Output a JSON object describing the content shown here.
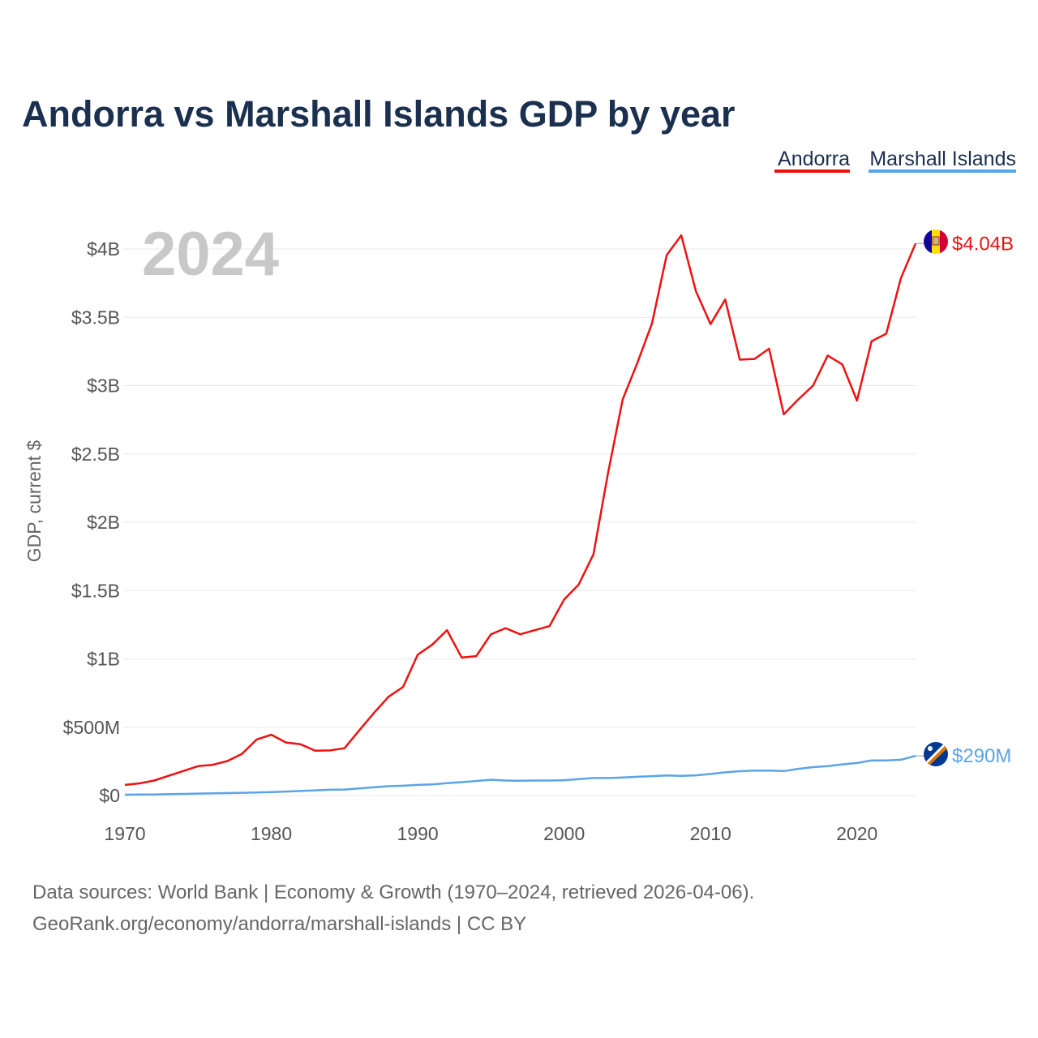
{
  "chart_data": {
    "type": "line",
    "title": "Andorra vs Marshall Islands GDP by year",
    "ylabel": "GDP, current $",
    "xlabel": "",
    "current_year": "2024",
    "ylim": [
      0,
      4200000000
    ],
    "xlim": [
      1970,
      2024
    ],
    "y_ticks": [
      {
        "value": 0,
        "label": "$0"
      },
      {
        "value": 500000000,
        "label": "$500M"
      },
      {
        "value": 1000000000,
        "label": "$1B"
      },
      {
        "value": 1500000000,
        "label": "$1.5B"
      },
      {
        "value": 2000000000,
        "label": "$2B"
      },
      {
        "value": 2500000000,
        "label": "$2.5B"
      },
      {
        "value": 3000000000,
        "label": "$3B"
      },
      {
        "value": 3500000000,
        "label": "$3.5B"
      },
      {
        "value": 4000000000,
        "label": "$4B"
      }
    ],
    "x_ticks": [
      {
        "value": 1970,
        "label": "1970"
      },
      {
        "value": 1980,
        "label": "1980"
      },
      {
        "value": 1990,
        "label": "1990"
      },
      {
        "value": 2000,
        "label": "2000"
      },
      {
        "value": 2010,
        "label": "2010"
      },
      {
        "value": 2020,
        "label": "2020"
      }
    ],
    "x": [
      1970,
      1971,
      1972,
      1973,
      1974,
      1975,
      1976,
      1977,
      1978,
      1979,
      1980,
      1981,
      1982,
      1983,
      1984,
      1985,
      1986,
      1987,
      1988,
      1989,
      1990,
      1991,
      1992,
      1993,
      1994,
      1995,
      1996,
      1997,
      1998,
      1999,
      2000,
      2001,
      2002,
      2003,
      2004,
      2005,
      2006,
      2007,
      2008,
      2009,
      2010,
      2011,
      2012,
      2013,
      2014,
      2015,
      2016,
      2017,
      2018,
      2019,
      2020,
      2021,
      2022,
      2023,
      2024
    ],
    "series": [
      {
        "name": "Andorra",
        "color": "#ee1111",
        "end_label": "$4.04B",
        "flag": "andorra",
        "values": [
          78000000,
          89000000,
          110000000,
          145000000,
          180000000,
          215000000,
          225000000,
          252000000,
          305000000,
          410000000,
          445000000,
          388000000,
          375000000,
          328000000,
          330000000,
          346000000,
          476000000,
          603000000,
          722000000,
          795000000,
          1030000000,
          1105000000,
          1210000000,
          1010000000,
          1020000000,
          1180000000,
          1225000000,
          1180000000,
          1210000000,
          1240000000,
          1435000000,
          1545000000,
          1765000000,
          2360000000,
          2900000000,
          3165000000,
          3455000000,
          3955000000,
          4100000000,
          3690000000,
          3450000000,
          3630000000,
          3190000000,
          3195000000,
          3270000000,
          2790000000,
          2900000000,
          3000000000,
          3220000000,
          3155000000,
          2890000000,
          3325000000,
          3380000000,
          3785000000,
          4040000000
        ]
      },
      {
        "name": "Marshall Islands",
        "color": "#5ba4e6",
        "end_label": "$290M",
        "flag": "marshall-islands",
        "values": [
          6000000,
          7000000,
          8000000,
          10000000,
          12000000,
          14000000,
          16000000,
          18000000,
          20000000,
          22000000,
          25000000,
          29000000,
          33000000,
          38000000,
          42000000,
          44000000,
          52000000,
          60000000,
          68000000,
          72000000,
          78000000,
          82000000,
          90000000,
          98000000,
          106000000,
          116000000,
          110000000,
          108000000,
          110000000,
          110000000,
          112000000,
          120000000,
          128000000,
          128000000,
          132000000,
          137000000,
          142000000,
          147000000,
          144000000,
          148000000,
          158000000,
          170000000,
          178000000,
          183000000,
          183000000,
          179000000,
          195000000,
          208000000,
          215000000,
          228000000,
          238000000,
          257000000,
          257000000,
          262000000,
          290000000
        ]
      }
    ],
    "legend": [
      "Andorra",
      "Marshall Islands"
    ],
    "legend_position": "top-right"
  },
  "footer": {
    "line1": "Data sources: World Bank | Economy & Growth (1970–2024, retrieved 2026-04-06).",
    "line2": "GeoRank.org/economy/andorra/marshall-islands | CC BY"
  }
}
